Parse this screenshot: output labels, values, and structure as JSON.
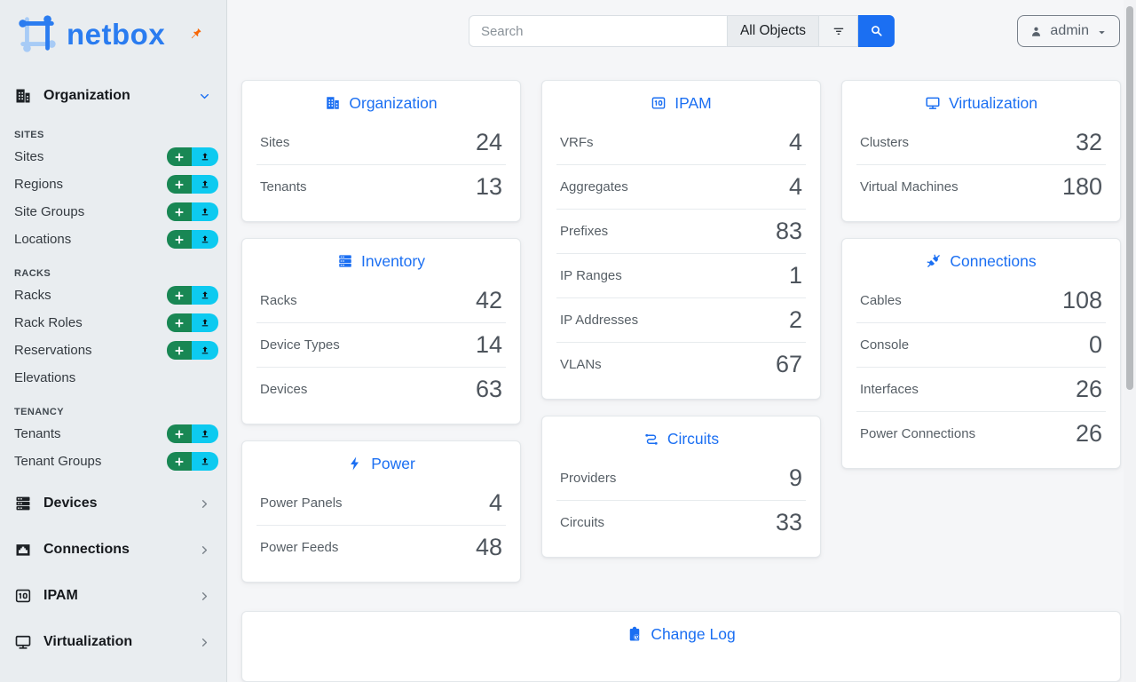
{
  "colors": {
    "accent": "#1b6ff2",
    "green": "#198754",
    "cyan": "#0dcaf0",
    "orange": "#f76707",
    "logo_blue": "#2a7cf0"
  },
  "sidebar": {
    "logo_text": "netbox",
    "primary_menu": {
      "label": "Organization",
      "icon": "building-icon",
      "state": "expanded"
    },
    "sections": [
      {
        "title": "SITES",
        "items": [
          {
            "label": "Sites",
            "quick_add": true
          },
          {
            "label": "Regions",
            "quick_add": true
          },
          {
            "label": "Site Groups",
            "quick_add": true
          },
          {
            "label": "Locations",
            "quick_add": true
          }
        ]
      },
      {
        "title": "RACKS",
        "items": [
          {
            "label": "Racks",
            "quick_add": true
          },
          {
            "label": "Rack Roles",
            "quick_add": true
          },
          {
            "label": "Reservations",
            "quick_add": true
          },
          {
            "label": "Elevations",
            "quick_add": false
          }
        ]
      },
      {
        "title": "TENANCY",
        "items": [
          {
            "label": "Tenants",
            "quick_add": true
          },
          {
            "label": "Tenant Groups",
            "quick_add": true
          }
        ]
      }
    ],
    "collapsed_menus": [
      {
        "label": "Devices",
        "icon": "server-icon"
      },
      {
        "label": "Connections",
        "icon": "ethernet-icon"
      },
      {
        "label": "IPAM",
        "icon": "binary-icon"
      },
      {
        "label": "Virtualization",
        "icon": "monitor-icon"
      }
    ]
  },
  "topbar": {
    "search_placeholder": "Search",
    "scope_label": "All Objects",
    "user": {
      "label": "admin",
      "icon": "person-icon"
    }
  },
  "cards": [
    {
      "title": "Organization",
      "icon": "building-icon",
      "column": 0,
      "stats": [
        {
          "label": "Sites",
          "value": "24"
        },
        {
          "label": "Tenants",
          "value": "13"
        }
      ]
    },
    {
      "title": "Inventory",
      "icon": "server-icon",
      "column": 0,
      "stats": [
        {
          "label": "Racks",
          "value": "42"
        },
        {
          "label": "Device Types",
          "value": "14"
        },
        {
          "label": "Devices",
          "value": "63"
        }
      ]
    },
    {
      "title": "Power",
      "icon": "bolt-icon",
      "column": 0,
      "stats": [
        {
          "label": "Power Panels",
          "value": "4"
        },
        {
          "label": "Power Feeds",
          "value": "48"
        }
      ]
    },
    {
      "title": "IPAM",
      "icon": "binary-icon",
      "column": 1,
      "stats": [
        {
          "label": "VRFs",
          "value": "4"
        },
        {
          "label": "Aggregates",
          "value": "4"
        },
        {
          "label": "Prefixes",
          "value": "83"
        },
        {
          "label": "IP Ranges",
          "value": "1"
        },
        {
          "label": "IP Addresses",
          "value": "2"
        },
        {
          "label": "VLANs",
          "value": "67"
        }
      ]
    },
    {
      "title": "Circuits",
      "icon": "route-icon",
      "column": 1,
      "stats": [
        {
          "label": "Providers",
          "value": "9"
        },
        {
          "label": "Circuits",
          "value": "33"
        }
      ]
    },
    {
      "title": "Virtualization",
      "icon": "monitor-icon",
      "column": 2,
      "stats": [
        {
          "label": "Clusters",
          "value": "32"
        },
        {
          "label": "Virtual Machines",
          "value": "180"
        }
      ]
    },
    {
      "title": "Connections",
      "icon": "plug-icon",
      "column": 2,
      "stats": [
        {
          "label": "Cables",
          "value": "108"
        },
        {
          "label": "Console",
          "value": "0"
        },
        {
          "label": "Interfaces",
          "value": "26"
        },
        {
          "label": "Power Connections",
          "value": "26"
        }
      ]
    }
  ],
  "changelog": {
    "title": "Change Log",
    "icon": "clipboard-clock-icon"
  }
}
